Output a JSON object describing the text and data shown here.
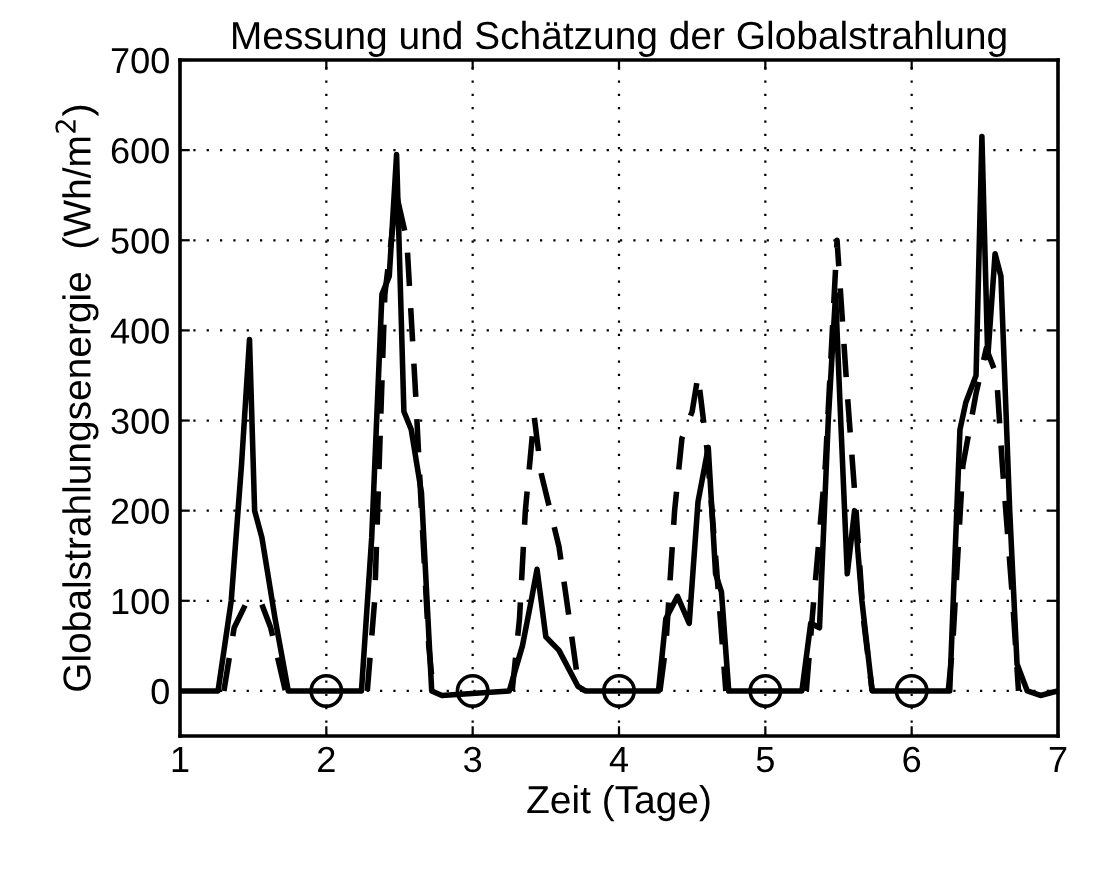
{
  "chart_data": {
    "type": "line",
    "title": "Messung und Schätzung der Globalstrahlung",
    "xlabel": "Zeit (Tage)",
    "ylabel": "Globalstrahlungsenergie  (Wh/m$^{2}$)",
    "xlim": [
      1,
      7
    ],
    "ylim": [
      -50,
      700
    ],
    "xticks": [
      1,
      2,
      3,
      4,
      5,
      6,
      7
    ],
    "yticks": [
      0,
      100,
      200,
      300,
      400,
      500,
      600,
      700
    ],
    "grid": true,
    "legend": false,
    "series": [
      {
        "line_style": "solid",
        "marker": "none",
        "color": "#000000",
        "x": [
          1,
          1.26,
          1.35,
          1.42,
          1.475,
          1.51,
          1.56,
          1.65,
          1.74,
          2.24,
          2.31,
          2.38,
          2.43,
          2.48,
          2.53,
          2.58,
          2.65,
          2.72,
          2.79,
          3.25,
          3.34,
          3.4,
          3.44,
          3.5,
          3.59,
          3.72,
          3.77,
          4.27,
          4.32,
          4.4,
          4.48,
          4.54,
          4.61,
          4.66,
          4.7,
          4.75,
          5.25,
          5.31,
          5.37,
          5.43,
          5.48,
          5.51,
          5.56,
          5.61,
          5.66,
          5.73,
          6.26,
          6.33,
          6.37,
          6.44,
          6.48,
          6.52,
          6.57,
          6.61,
          6.67,
          6.72,
          6.79,
          6.88,
          7
        ],
        "values": [
          0,
          0,
          100,
          250,
          390,
          200,
          170,
          80,
          0,
          0,
          170,
          440,
          460,
          595,
          310,
          290,
          220,
          0,
          -5,
          0,
          50,
          100,
          135,
          60,
          45,
          5,
          0,
          0,
          80,
          105,
          75,
          210,
          270,
          130,
          110,
          0,
          0,
          75,
          70,
          300,
          440,
          320,
          130,
          200,
          100,
          0,
          0,
          290,
          320,
          350,
          615,
          370,
          485,
          460,
          200,
          30,
          0,
          -5,
          0
        ]
      },
      {
        "line_style": "dashed",
        "marker": "none",
        "color": "#000000",
        "x": [
          1.3,
          1.37,
          1.46,
          1.55,
          1.62,
          1.72,
          1.9,
          2.28,
          2.33,
          2.4,
          2.48,
          2.55,
          2.61,
          2.65,
          2.7,
          2.73,
          3.0,
          3.27,
          3.32,
          3.36,
          3.42,
          3.47,
          3.59,
          3.66,
          3.72,
          3.77,
          4.0,
          4.28,
          4.32,
          4.38,
          4.43,
          4.5,
          4.54,
          4.6,
          4.66,
          4.73,
          5.0,
          5.28,
          5.32,
          5.41,
          5.49,
          5.56,
          5.62,
          5.67,
          5.73,
          6.0,
          6.25,
          6.28,
          6.35,
          6.44,
          6.51,
          6.58,
          6.62,
          6.69,
          6.73
        ],
        "values": [
          0,
          70,
          100,
          100,
          70,
          0,
          null,
          0,
          100,
          440,
          550,
          500,
          330,
          200,
          50,
          0,
          null,
          0,
          80,
          200,
          305,
          240,
          160,
          80,
          10,
          0,
          null,
          0,
          50,
          200,
          280,
          310,
          350,
          270,
          150,
          0,
          null,
          0,
          80,
          250,
          500,
          330,
          200,
          80,
          0,
          null,
          0,
          50,
          250,
          330,
          380,
          350,
          250,
          100,
          0
        ]
      },
      {
        "type": "scatter",
        "marker": "circle",
        "color": "#000000",
        "x": [
          2,
          3,
          4,
          5,
          6
        ],
        "values": [
          0,
          0,
          0,
          0,
          0
        ]
      }
    ]
  }
}
